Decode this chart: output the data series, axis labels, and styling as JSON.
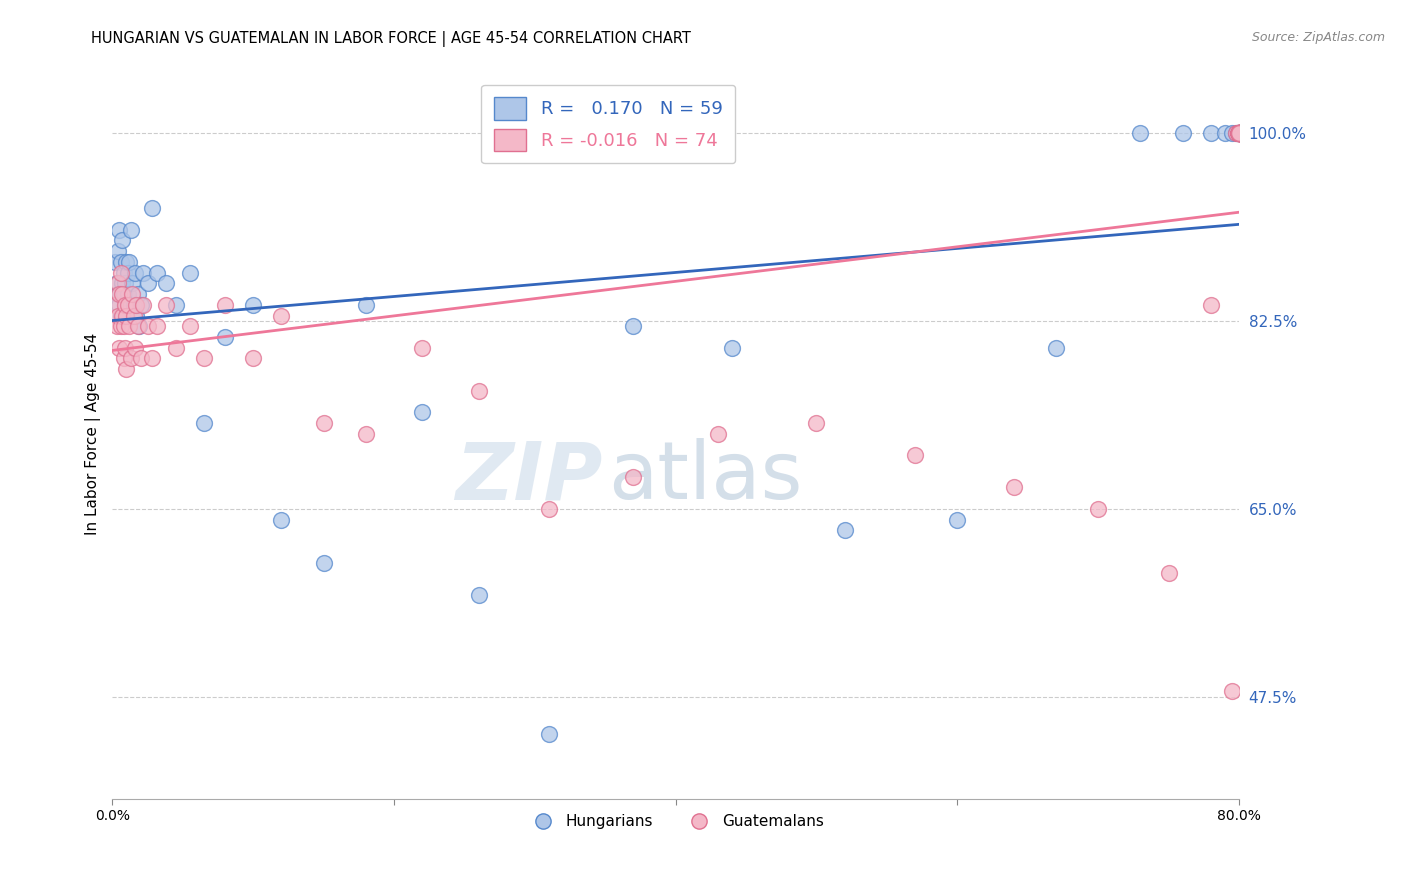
{
  "title": "HUNGARIAN VS GUATEMALAN IN LABOR FORCE | AGE 45-54 CORRELATION CHART",
  "source": "Source: ZipAtlas.com",
  "ylabel": "In Labor Force | Age 45-54",
  "yticks": [
    0.475,
    0.65,
    0.825,
    1.0
  ],
  "ytick_labels": [
    "47.5%",
    "65.0%",
    "82.5%",
    "100.0%"
  ],
  "xlim": [
    0.0,
    0.8
  ],
  "ylim": [
    0.38,
    1.06
  ],
  "legend_blue_label_r": "R =  0.170",
  "legend_blue_label_n": "N = 59",
  "legend_pink_label_r": "R = -0.016",
  "legend_pink_label_n": "N = 74",
  "bottom_legend_blue": "Hungarians",
  "bottom_legend_pink": "Guatemalans",
  "blue_fill": "#aec6e8",
  "pink_fill": "#f4b8c8",
  "blue_edge": "#5588cc",
  "pink_edge": "#e07090",
  "trend_blue": "#3366bb",
  "trend_pink": "#ee7799",
  "watermark_zip": "ZIP",
  "watermark_atlas": "atlas",
  "blue_x": [
    0.002,
    0.003,
    0.004,
    0.004,
    0.005,
    0.005,
    0.006,
    0.006,
    0.007,
    0.007,
    0.008,
    0.008,
    0.009,
    0.009,
    0.01,
    0.01,
    0.011,
    0.011,
    0.012,
    0.012,
    0.013,
    0.014,
    0.015,
    0.016,
    0.017,
    0.018,
    0.019,
    0.02,
    0.022,
    0.025,
    0.028,
    0.032,
    0.038,
    0.045,
    0.055,
    0.065,
    0.08,
    0.1,
    0.12,
    0.15,
    0.18,
    0.22,
    0.26,
    0.31,
    0.37,
    0.44,
    0.52,
    0.6,
    0.67,
    0.73,
    0.76,
    0.78,
    0.79,
    0.795,
    0.798,
    0.799,
    0.8,
    0.8,
    0.8
  ],
  "blue_y": [
    0.88,
    0.86,
    0.85,
    0.89,
    0.84,
    0.91,
    0.83,
    0.88,
    0.86,
    0.9,
    0.85,
    0.87,
    0.84,
    0.86,
    0.88,
    0.83,
    0.87,
    0.85,
    0.84,
    0.88,
    0.91,
    0.86,
    0.84,
    0.87,
    0.83,
    0.85,
    0.82,
    0.84,
    0.87,
    0.86,
    0.93,
    0.87,
    0.86,
    0.84,
    0.87,
    0.73,
    0.81,
    0.84,
    0.64,
    0.6,
    0.84,
    0.74,
    0.57,
    0.44,
    0.82,
    0.8,
    0.63,
    0.64,
    0.8,
    1.0,
    1.0,
    1.0,
    1.0,
    1.0,
    1.0,
    1.0,
    1.0,
    1.0,
    1.0
  ],
  "pink_x": [
    0.002,
    0.003,
    0.004,
    0.004,
    0.005,
    0.005,
    0.006,
    0.006,
    0.007,
    0.007,
    0.008,
    0.008,
    0.009,
    0.009,
    0.01,
    0.01,
    0.011,
    0.012,
    0.013,
    0.014,
    0.015,
    0.016,
    0.017,
    0.018,
    0.02,
    0.022,
    0.025,
    0.028,
    0.032,
    0.038,
    0.045,
    0.055,
    0.065,
    0.08,
    0.1,
    0.12,
    0.15,
    0.18,
    0.22,
    0.26,
    0.31,
    0.37,
    0.43,
    0.5,
    0.57,
    0.64,
    0.7,
    0.75,
    0.78,
    0.795,
    0.798,
    0.799,
    0.8,
    0.8,
    0.8,
    0.8,
    0.8,
    0.8,
    0.8,
    0.8,
    0.8,
    0.8,
    0.8,
    0.8,
    0.8,
    0.8,
    0.8,
    0.8,
    0.8,
    0.8,
    0.8,
    0.8,
    0.8,
    0.8
  ],
  "pink_y": [
    0.84,
    0.82,
    0.86,
    0.83,
    0.85,
    0.8,
    0.82,
    0.87,
    0.83,
    0.85,
    0.79,
    0.82,
    0.84,
    0.8,
    0.83,
    0.78,
    0.84,
    0.82,
    0.79,
    0.85,
    0.83,
    0.8,
    0.84,
    0.82,
    0.79,
    0.84,
    0.82,
    0.79,
    0.82,
    0.84,
    0.8,
    0.82,
    0.79,
    0.84,
    0.79,
    0.83,
    0.73,
    0.72,
    0.8,
    0.76,
    0.65,
    0.68,
    0.72,
    0.73,
    0.7,
    0.67,
    0.65,
    0.59,
    0.84,
    0.48,
    1.0,
    1.0,
    1.0,
    1.0,
    1.0,
    1.0,
    1.0,
    1.0,
    1.0,
    1.0,
    1.0,
    1.0,
    1.0,
    1.0,
    1.0,
    1.0,
    1.0,
    1.0,
    1.0,
    1.0,
    1.0,
    1.0,
    1.0,
    1.0
  ]
}
